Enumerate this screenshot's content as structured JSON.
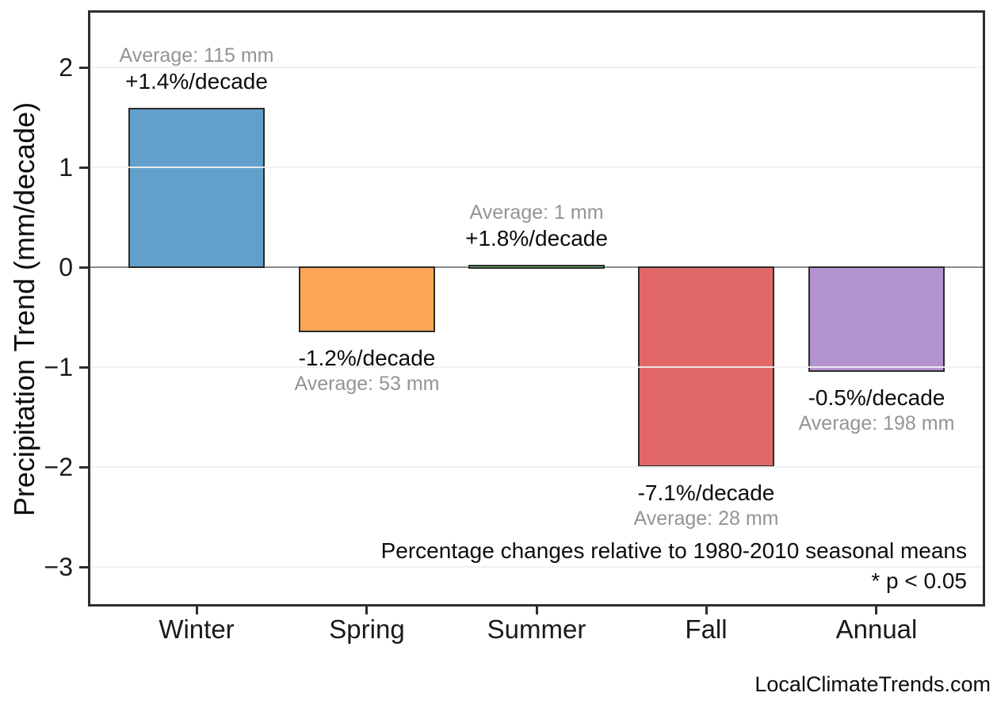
{
  "chart_data": {
    "type": "bar",
    "title": "",
    "xlabel": "",
    "ylabel": "Precipitation Trend (mm/decade)",
    "categories": [
      "Winter",
      "Spring",
      "Summer",
      "Fall",
      "Annual"
    ],
    "values": [
      1.6,
      -0.65,
      0.02,
      -2.0,
      -1.05
    ],
    "units": "mm/decade",
    "percent_labels": [
      "+1.4%/decade",
      "-1.2%/decade",
      "+1.8%/decade",
      "-7.1%/decade",
      "-0.5%/decade"
    ],
    "average_labels": [
      "Average: 115 mm",
      "Average: 53 mm",
      "Average: 1 mm",
      "Average: 28 mm",
      "Average: 198 mm"
    ],
    "label_side": [
      "above",
      "below",
      "above",
      "below",
      "below"
    ],
    "bar_colors": [
      "#62A0CB",
      "#FFA556",
      "#6BBC6B",
      "#E26868",
      "#B494D0"
    ],
    "bar_edge_color": "#2b2b2b",
    "ytick_labels": [
      "2",
      "1",
      "0",
      "−1",
      "−2",
      "−3"
    ],
    "ytick_values": [
      2,
      1,
      0,
      -1,
      -2,
      -3
    ],
    "ylim": [
      -3.4,
      2.574
    ],
    "grid": true,
    "zero_line_color": "#8a8a8a",
    "annotations": {
      "line1": "Percentage changes relative to 1980-2010 seasonal means",
      "line2": "* p < 0.05"
    },
    "watermark": "LocalClimateTrends.com"
  }
}
